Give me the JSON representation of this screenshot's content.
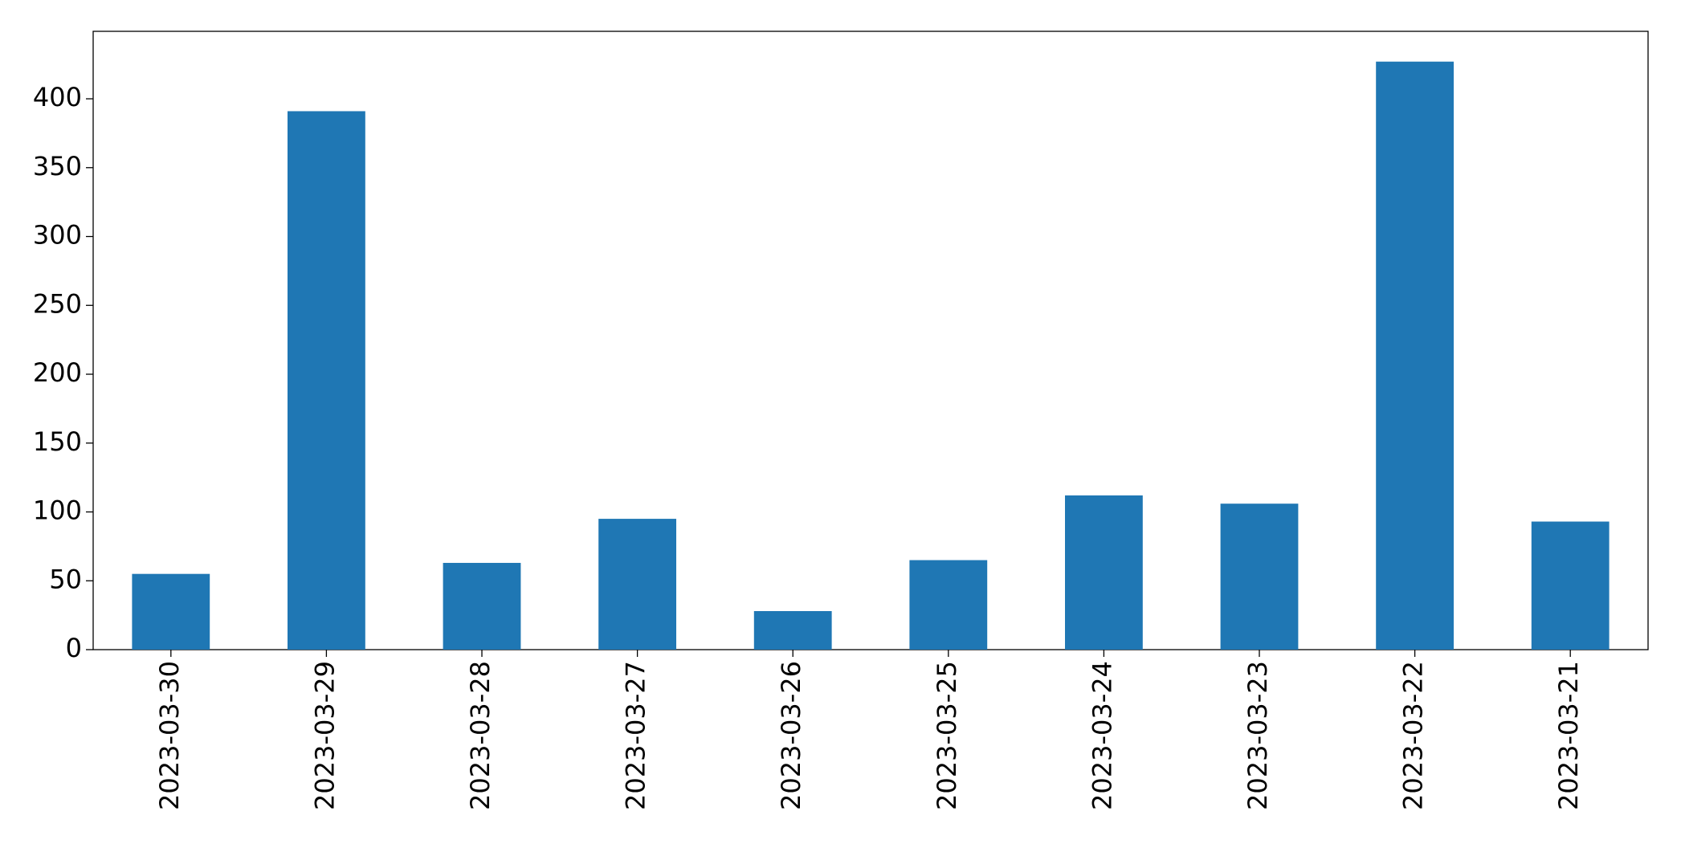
{
  "chart_data": {
    "type": "bar",
    "categories": [
      "2023-03-30",
      "2023-03-29",
      "2023-03-28",
      "2023-03-27",
      "2023-03-26",
      "2023-03-25",
      "2023-03-24",
      "2023-03-23",
      "2023-03-22",
      "2023-03-21"
    ],
    "values": [
      55,
      391,
      63,
      95,
      28,
      65,
      112,
      106,
      427,
      93
    ],
    "color": "#1f77b4",
    "ylim": [
      0,
      449
    ],
    "yticks": [
      0,
      50,
      100,
      150,
      200,
      250,
      300,
      350,
      400
    ],
    "grid": false
  }
}
